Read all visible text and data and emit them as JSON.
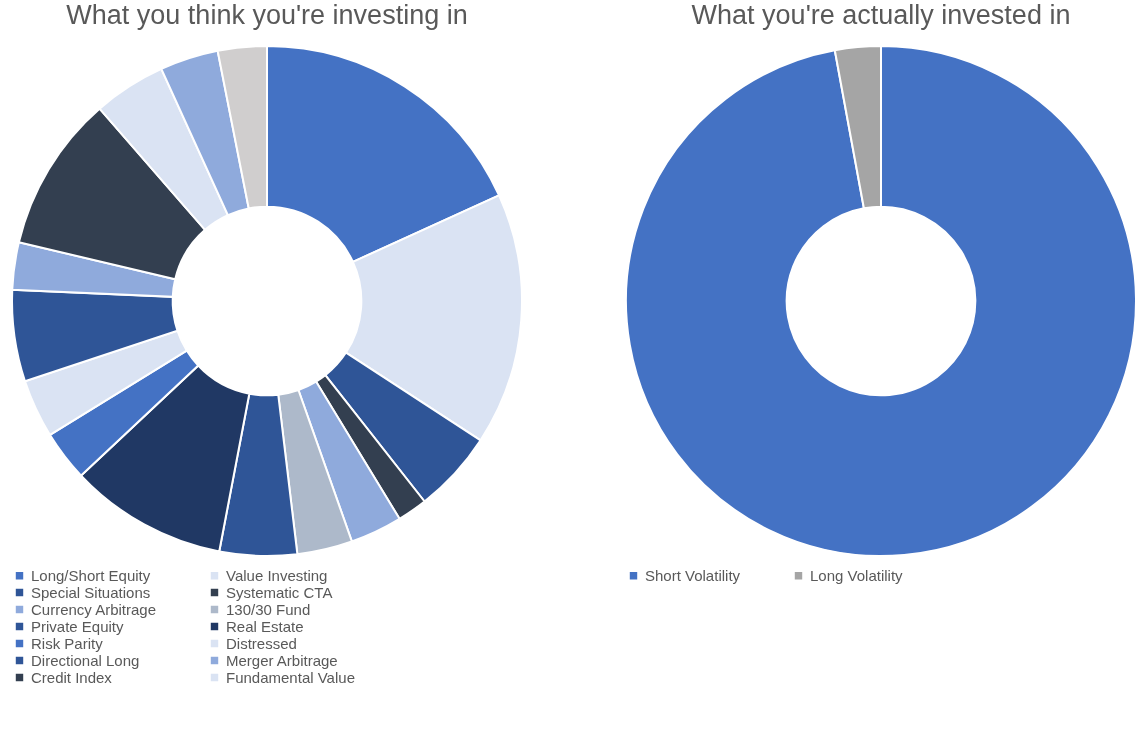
{
  "chart_data": [
    {
      "type": "donut",
      "title": "What you think you're investing in",
      "legend": "bottom",
      "categories": [
        "Long/Short Equity",
        "Value Investing",
        "Special Situations",
        "Systematic CTA",
        "Currency Arbitrage",
        "130/30 Fund",
        "Private Equity",
        "Real Estate",
        "Risk Parity",
        "Distressed",
        "Directional Long",
        "Merger Arbitrage",
        "Credit Index",
        "Fundamental Value",
        null,
        null
      ],
      "values": [
        18.2,
        16,
        5.2,
        1.9,
        3.3,
        3.5,
        4.9,
        10,
        3.2,
        3.7,
        5.8,
        3,
        9.9,
        4.6,
        3.7,
        3.1
      ],
      "colors": [
        "#4472c4",
        "#dae3f3",
        "#2f5597",
        "#333f50",
        "#8faadc",
        "#adb9ca",
        "#2f5597",
        "#203864",
        "#4472c4",
        "#dae3f3",
        "#2f5597",
        "#8faadc",
        "#333f50",
        "#dae3f3",
        "#8faadc",
        "#d0cece"
      ]
    },
    {
      "type": "donut",
      "title": "What you're actually invested in",
      "legend": "bottom",
      "categories": [
        "Short Volatility",
        "Long Volatility"
      ],
      "values": [
        97.1,
        2.9
      ],
      "colors": [
        "#4472c4",
        "#a5a5a5"
      ]
    }
  ]
}
